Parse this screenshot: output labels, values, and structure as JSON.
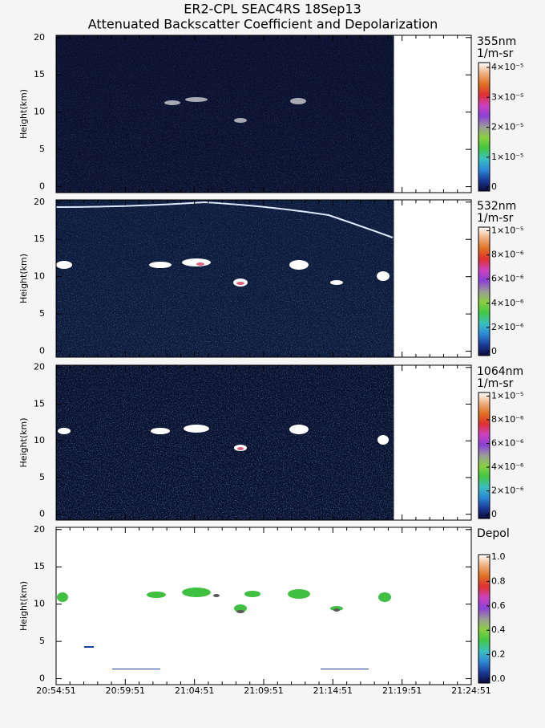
{
  "chart_data": [
    {
      "type": "heatmap",
      "title": "ER2-CPL SEAC4RS 18Sep13",
      "subtitle": "Attenuated Backscatter Coefficient and Depolarization",
      "ylabel": "Height(km)",
      "ylim": [
        -0.8,
        20.3
      ],
      "yticks": [
        0,
        5,
        10,
        15,
        20
      ],
      "colorbar_label": "355nm",
      "colorbar_unit": "1/m-sr",
      "clim": [
        -1.3e-06,
        4.16e-05
      ],
      "cticks": [
        {
          "value": 0,
          "label": "0"
        },
        {
          "value": 1e-05,
          "label": "1×10⁻⁵"
        },
        {
          "value": 2e-05,
          "label": "2×10⁻⁵"
        },
        {
          "value": 3e-05,
          "label": "3×10⁻⁵"
        },
        {
          "value": 4e-05,
          "label": "4×10⁻⁵"
        }
      ],
      "background": "#0b1230"
    },
    {
      "type": "heatmap",
      "ylabel": "Height(km)",
      "ylim": [
        -0.8,
        20.3
      ],
      "yticks": [
        0,
        5,
        10,
        15,
        20
      ],
      "colorbar_label": "532nm",
      "colorbar_unit": "1/m-sr",
      "clim": [
        -3.3e-07,
        1.03e-05
      ],
      "cticks": [
        {
          "value": 0,
          "label": "0"
        },
        {
          "value": 2e-06,
          "label": "2×10⁻⁶"
        },
        {
          "value": 4e-06,
          "label": "4×10⁻⁶"
        },
        {
          "value": 6e-06,
          "label": "6×10⁻⁶"
        },
        {
          "value": 8e-06,
          "label": "8×10⁻⁶"
        },
        {
          "value": 1e-05,
          "label": "1×10⁻⁵"
        }
      ],
      "background": "#0d1a3c"
    },
    {
      "type": "heatmap",
      "ylabel": "Height(km)",
      "ylim": [
        -0.8,
        20.3
      ],
      "yticks": [
        0,
        5,
        10,
        15,
        20
      ],
      "colorbar_label": "1064nm",
      "colorbar_unit": "1/m-sr",
      "clim": [
        -3.3e-07,
        1.03e-05
      ],
      "cticks": [
        {
          "value": 0,
          "label": "0"
        },
        {
          "value": 2e-06,
          "label": "2×10⁻⁶"
        },
        {
          "value": 4e-06,
          "label": "4×10⁻⁶"
        },
        {
          "value": 6e-06,
          "label": "6×10⁻⁶"
        },
        {
          "value": 8e-06,
          "label": "8×10⁻⁶"
        },
        {
          "value": 1e-05,
          "label": "1×10⁻⁵"
        }
      ],
      "background": "#0a1230"
    },
    {
      "type": "heatmap",
      "ylabel": "Height(km)",
      "ylim": [
        -0.8,
        20.3
      ],
      "yticks": [
        0,
        5,
        10,
        15,
        20
      ],
      "colorbar_label": "Depol",
      "clim": [
        -0.033,
        1.02
      ],
      "cticks": [
        {
          "value": 0,
          "label": "0.0"
        },
        0.2,
        0.4,
        0.6,
        0.8,
        {
          "value": 1,
          "label": "1.0"
        }
      ],
      "background": "#ffffff",
      "xticks": [
        "20:54:51",
        "20:59:51",
        "21:04:51",
        "21:09:51",
        "21:14:51",
        "21:19:51",
        "21:24:51"
      ]
    }
  ],
  "colormap": [
    "#0a0a3a",
    "#1a3a9a",
    "#2a8ad8",
    "#3ac0c0",
    "#40c840",
    "#8ad040",
    "#9a9a9a",
    "#8a40d8",
    "#d040c0",
    "#e03030",
    "#e07020",
    "#f0b080",
    "#ffffff"
  ]
}
